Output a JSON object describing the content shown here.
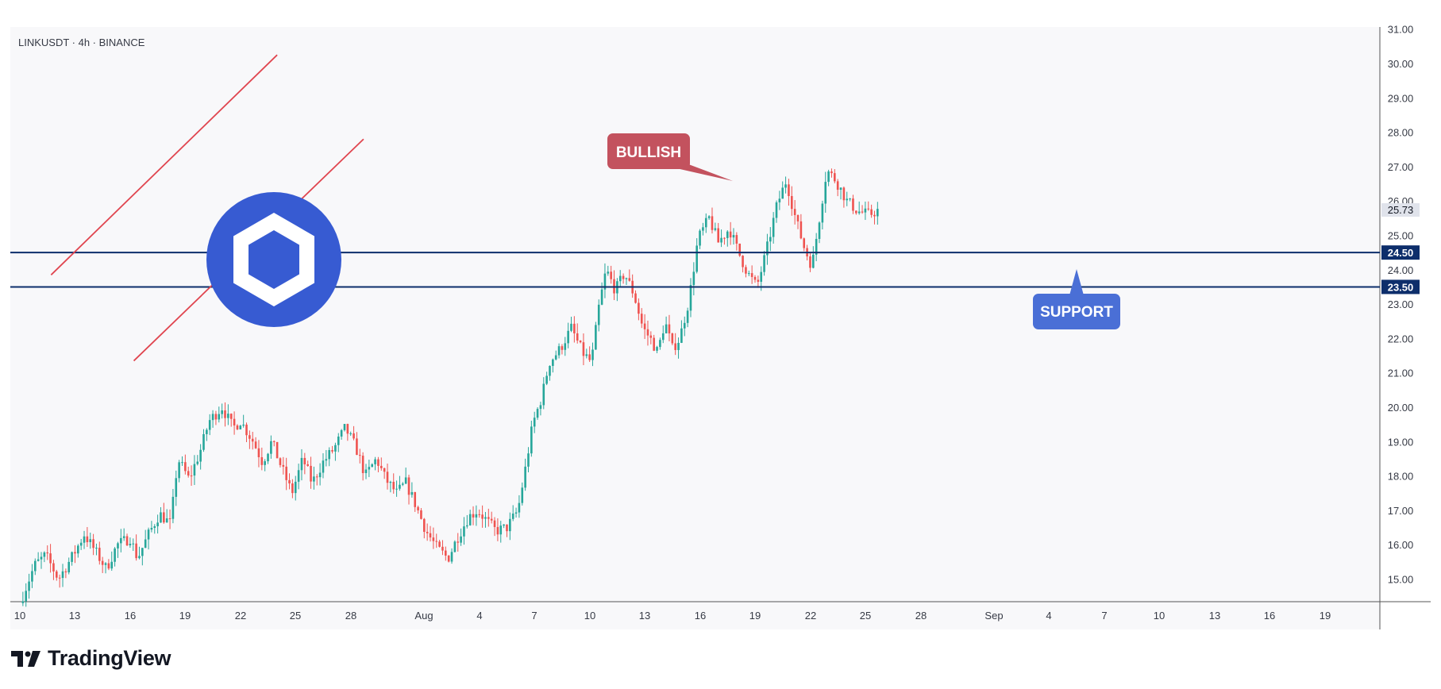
{
  "header": {
    "symbol_line": "LINKUSDT · 4h · BINANCE"
  },
  "branding": {
    "name": "TradingView",
    "logo_icon": "tradingview-logo-icon",
    "token_icon": "chainlink-logo-icon",
    "token_color": "#375BD2"
  },
  "colors": {
    "up": "#26A69A",
    "down": "#EF5350",
    "channel": "#E0454F",
    "level": "#0D2E6B",
    "bullish_callout": "#C3525E",
    "support_callout": "#4A6FD6",
    "last_price_bg": "#E0E3EB"
  },
  "chart_data": {
    "type": "candlestick",
    "title": "",
    "xlabel": "",
    "ylabel": "",
    "ylim": [
      14.3,
      31.05
    ],
    "y_ticks": [
      "15.00",
      "16.00",
      "17.00",
      "18.00",
      "19.00",
      "20.00",
      "21.00",
      "22.00",
      "23.00",
      "24.00",
      "25.00",
      "26.00",
      "27.00",
      "28.00",
      "29.00",
      "30.00",
      "31.00"
    ],
    "x_ticks": [
      "10",
      "13",
      "16",
      "19",
      "22",
      "25",
      "28",
      "Aug",
      "4",
      "7",
      "10",
      "13",
      "16",
      "19",
      "22",
      "25",
      "28",
      "Sep",
      "4",
      "7",
      "10",
      "13",
      "16",
      "19"
    ],
    "grid": false,
    "last_price": "25.73",
    "levels": [
      {
        "name": "resistance-level",
        "value": 24.5,
        "label": "24.50"
      },
      {
        "name": "support-level",
        "value": 23.5,
        "label": "23.50"
      }
    ],
    "annotations": {
      "bullish": "BULLISH",
      "support": "SUPPORT"
    },
    "channel": {
      "upper": [
        {
          "x": 11.7,
          "y": 23.85
        },
        {
          "x": 24.0,
          "y": 30.25
        }
      ],
      "lower": [
        {
          "x": 16.2,
          "y": 21.35
        },
        {
          "x": 28.7,
          "y": 27.8
        }
      ]
    },
    "price_path": [
      [
        10.0,
        14.3
      ],
      [
        10.8,
        15.4
      ],
      [
        11.4,
        15.7
      ],
      [
        12.1,
        15.0
      ],
      [
        12.9,
        15.7
      ],
      [
        13.5,
        16.3
      ],
      [
        14.0,
        15.9
      ],
      [
        14.7,
        15.3
      ],
      [
        15.3,
        16.0
      ],
      [
        16.0,
        16.2
      ],
      [
        16.4,
        15.6
      ],
      [
        17.0,
        16.3
      ],
      [
        17.6,
        16.9
      ],
      [
        18.2,
        16.6
      ],
      [
        18.6,
        18.5
      ],
      [
        19.2,
        17.9
      ],
      [
        19.8,
        18.7
      ],
      [
        20.3,
        19.6
      ],
      [
        21.0,
        20.0
      ],
      [
        21.6,
        19.4
      ],
      [
        22.0,
        19.6
      ],
      [
        22.7,
        19.0
      ],
      [
        23.2,
        18.4
      ],
      [
        23.7,
        19.0
      ],
      [
        24.2,
        18.3
      ],
      [
        24.8,
        17.5
      ],
      [
        25.4,
        18.5
      ],
      [
        25.9,
        17.8
      ],
      [
        26.5,
        18.4
      ],
      [
        27.1,
        18.8
      ],
      [
        27.7,
        19.4
      ],
      [
        28.3,
        18.8
      ],
      [
        28.8,
        18.0
      ],
      [
        29.4,
        18.5
      ],
      [
        29.9,
        17.9
      ],
      [
        30.5,
        17.5
      ],
      [
        31.0,
        17.8
      ],
      [
        31.5,
        17.2
      ],
      [
        32.1,
        16.4
      ],
      [
        32.7,
        15.9
      ],
      [
        33.3,
        15.6
      ],
      [
        33.8,
        16.2
      ],
      [
        34.4,
        16.8
      ],
      [
        34.9,
        17.0
      ],
      [
        35.4,
        16.7
      ],
      [
        35.9,
        16.4
      ],
      [
        36.5,
        16.5
      ],
      [
        37.1,
        17.0
      ],
      [
        37.5,
        18.2
      ],
      [
        37.9,
        19.5
      ],
      [
        38.4,
        20.3
      ],
      [
        38.8,
        21.3
      ],
      [
        39.4,
        21.7
      ],
      [
        40.0,
        22.3
      ],
      [
        40.6,
        21.6
      ],
      [
        41.1,
        21.3
      ],
      [
        41.5,
        22.9
      ],
      [
        41.9,
        24.0
      ],
      [
        42.4,
        23.4
      ],
      [
        42.9,
        23.9
      ],
      [
        43.4,
        23.3
      ],
      [
        43.9,
        22.3
      ],
      [
        44.3,
        22.0
      ],
      [
        44.7,
        21.6
      ],
      [
        45.1,
        22.5
      ],
      [
        45.5,
        21.7
      ],
      [
        45.9,
        22.0
      ],
      [
        46.4,
        23.1
      ],
      [
        46.9,
        24.9
      ],
      [
        47.5,
        25.5
      ],
      [
        48.0,
        24.8
      ],
      [
        48.6,
        25.2
      ],
      [
        49.1,
        24.5
      ],
      [
        49.6,
        23.9
      ],
      [
        50.1,
        23.5
      ],
      [
        50.6,
        24.5
      ],
      [
        51.2,
        25.9
      ],
      [
        51.7,
        26.6
      ],
      [
        52.2,
        25.5
      ],
      [
        52.7,
        24.6
      ],
      [
        53.1,
        24.1
      ],
      [
        53.5,
        25.5
      ],
      [
        53.9,
        26.9
      ],
      [
        54.4,
        26.6
      ],
      [
        55.0,
        26.0
      ],
      [
        55.6,
        25.7
      ],
      [
        56.2,
        25.6
      ],
      [
        56.7,
        25.73
      ]
    ]
  }
}
